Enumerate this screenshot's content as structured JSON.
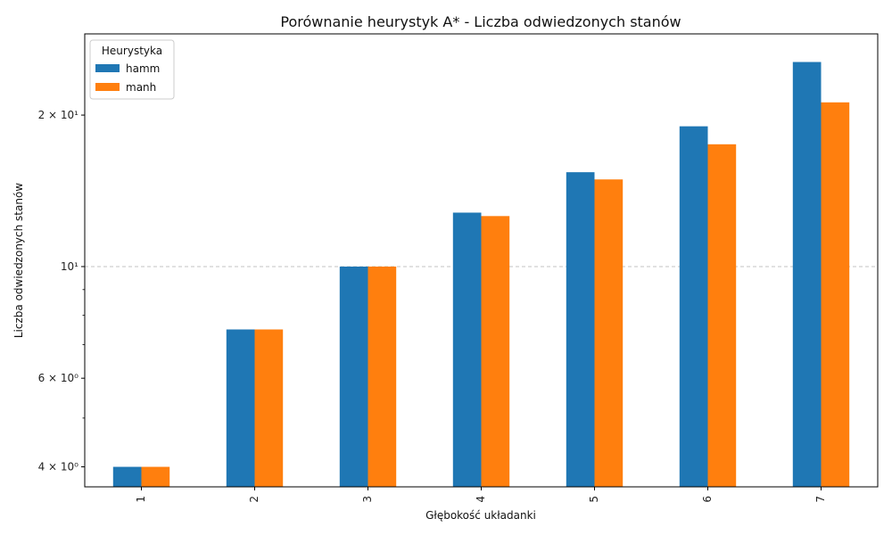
{
  "chart_data": {
    "type": "bar",
    "title": "Porównanie heurystyk A* - Liczba odwiedzonych stanów",
    "xlabel": "Głębokość układanki",
    "ylabel": "Liczba odwiedzonych stanów",
    "categories": [
      "1",
      "2",
      "3",
      "4",
      "5",
      "6",
      "7"
    ],
    "series": [
      {
        "name": "hamm",
        "color": "#1f77b4",
        "values": [
          4,
          7.5,
          10,
          12.8,
          15.4,
          19.0,
          25.5
        ]
      },
      {
        "name": "manh",
        "color": "#ff7f0e",
        "values": [
          4,
          7.5,
          10,
          12.6,
          14.9,
          17.5,
          21.2
        ]
      }
    ],
    "yscale": "log",
    "ylim": [
      3.65,
      29
    ],
    "yticks_major": [
      {
        "value": 4,
        "label": "4 × 10⁰"
      },
      {
        "value": 6,
        "label": "6 × 10⁰"
      },
      {
        "value": 10,
        "label": "10¹"
      },
      {
        "value": 20,
        "label": "2 × 10¹"
      }
    ],
    "yticks_minor": [
      5,
      7,
      8,
      9
    ],
    "grid_lines": [
      10
    ],
    "legend": {
      "title": "Heurystyka",
      "placement": "top-left"
    }
  }
}
